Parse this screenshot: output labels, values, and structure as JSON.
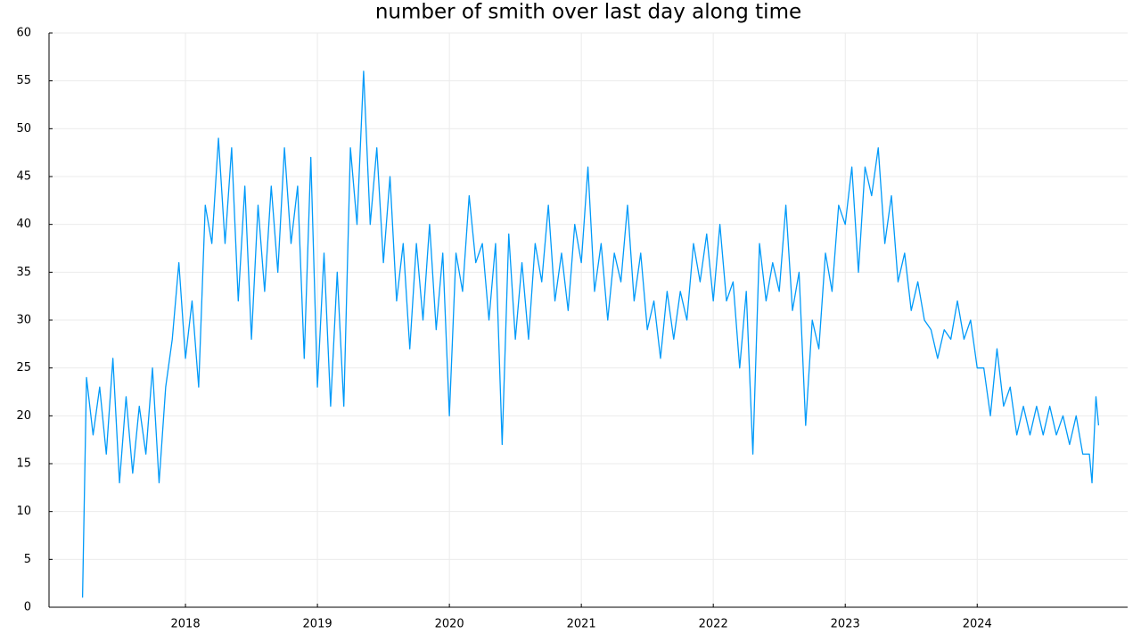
{
  "chart_data": {
    "type": "line",
    "title": "number of smith over last day along time",
    "x": [
      2017.22,
      2017.25,
      2017.3,
      2017.35,
      2017.4,
      2017.45,
      2017.5,
      2017.55,
      2017.6,
      2017.65,
      2017.7,
      2017.75,
      2017.8,
      2017.85,
      2017.9,
      2017.95,
      2018.0,
      2018.05,
      2018.1,
      2018.15,
      2018.2,
      2018.25,
      2018.3,
      2018.35,
      2018.4,
      2018.45,
      2018.5,
      2018.55,
      2018.6,
      2018.65,
      2018.7,
      2018.75,
      2018.8,
      2018.85,
      2018.9,
      2018.95,
      2019.0,
      2019.05,
      2019.1,
      2019.15,
      2019.2,
      2019.25,
      2019.3,
      2019.35,
      2019.4,
      2019.45,
      2019.5,
      2019.55,
      2019.6,
      2019.65,
      2019.7,
      2019.75,
      2019.8,
      2019.85,
      2019.9,
      2019.95,
      2020.0,
      2020.05,
      2020.1,
      2020.15,
      2020.2,
      2020.25,
      2020.3,
      2020.35,
      2020.4,
      2020.45,
      2020.5,
      2020.55,
      2020.6,
      2020.65,
      2020.7,
      2020.75,
      2020.8,
      2020.85,
      2020.9,
      2020.95,
      2021.0,
      2021.05,
      2021.1,
      2021.15,
      2021.2,
      2021.25,
      2021.3,
      2021.35,
      2021.4,
      2021.45,
      2021.5,
      2021.55,
      2021.6,
      2021.65,
      2021.7,
      2021.75,
      2021.8,
      2021.85,
      2021.9,
      2021.95,
      2022.0,
      2022.05,
      2022.1,
      2022.15,
      2022.2,
      2022.25,
      2022.3,
      2022.35,
      2022.4,
      2022.45,
      2022.5,
      2022.55,
      2022.6,
      2022.65,
      2022.7,
      2022.75,
      2022.8,
      2022.85,
      2022.9,
      2022.95,
      2023.0,
      2023.05,
      2023.1,
      2023.15,
      2023.2,
      2023.25,
      2023.3,
      2023.35,
      2023.4,
      2023.45,
      2023.5,
      2023.55,
      2023.6,
      2023.65,
      2023.7,
      2023.75,
      2023.8,
      2023.85,
      2023.9,
      2023.95,
      2024.0,
      2024.05,
      2024.1,
      2024.15,
      2024.2,
      2024.25,
      2024.3,
      2024.35,
      2024.4,
      2024.45,
      2024.5,
      2024.55,
      2024.6,
      2024.65,
      2024.7,
      2024.75,
      2024.8,
      2024.85,
      2024.87,
      2024.9,
      2024.92
    ],
    "series": [
      {
        "color": "#009af9",
        "values": [
          1,
          24,
          18,
          23,
          16,
          26,
          13,
          22,
          14,
          21,
          16,
          25,
          13,
          23,
          28,
          36,
          26,
          32,
          23,
          42,
          38,
          49,
          38,
          48,
          32,
          44,
          28,
          42,
          33,
          44,
          35,
          48,
          38,
          44,
          26,
          47,
          23,
          37,
          21,
          35,
          21,
          48,
          40,
          56,
          40,
          48,
          36,
          45,
          32,
          38,
          27,
          38,
          30,
          40,
          29,
          37,
          20,
          37,
          33,
          43,
          36,
          38,
          30,
          38,
          17,
          39,
          28,
          36,
          28,
          38,
          34,
          42,
          32,
          37,
          31,
          40,
          36,
          46,
          33,
          38,
          30,
          37,
          34,
          42,
          32,
          37,
          29,
          32,
          26,
          33,
          28,
          33,
          30,
          38,
          34,
          39,
          32,
          40,
          32,
          34,
          25,
          33,
          16,
          38,
          32,
          36,
          33,
          42,
          31,
          35,
          19,
          30,
          27,
          37,
          33,
          42,
          40,
          46,
          35,
          46,
          43,
          48,
          38,
          43,
          34,
          37,
          31,
          34,
          30,
          29,
          26,
          29,
          28,
          32,
          28,
          30,
          25,
          25,
          20,
          27,
          21,
          23,
          18,
          21,
          18,
          21,
          18,
          21,
          18,
          20,
          17,
          20,
          16,
          16,
          13,
          22,
          19
        ]
      }
    ],
    "xlim": [
      2016.966,
      2025.14
    ],
    "xticks": [
      2018,
      2019,
      2020,
      2021,
      2022,
      2023,
      2024
    ],
    "ylim": [
      0,
      60
    ],
    "yticks": [
      0,
      5,
      10,
      15,
      20,
      25,
      30,
      35,
      40,
      45,
      50,
      55,
      60
    ],
    "grid": true
  }
}
